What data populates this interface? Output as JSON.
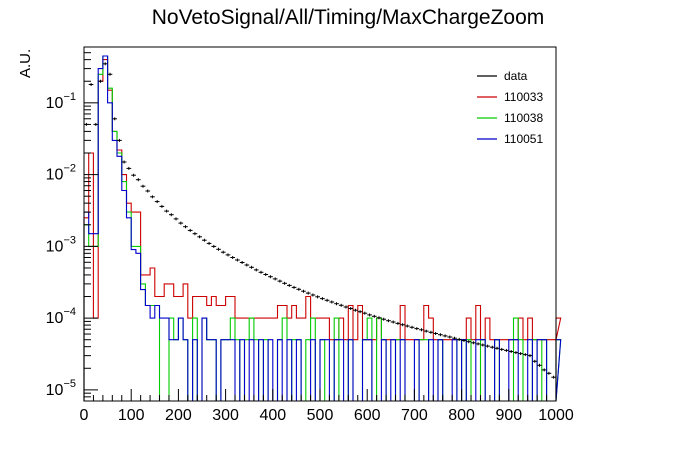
{
  "chart_data": {
    "type": "line",
    "title": "NoVetoSignal/All/Timing/MaxChargeZoom",
    "xlabel": "",
    "ylabel": "A.U.",
    "xlim": [
      0,
      1000
    ],
    "ylim": [
      7e-06,
      0.6
    ],
    "log_y": true,
    "grid": false,
    "legend_position": "top-right",
    "x_ticks": [
      "0",
      "100",
      "200",
      "300",
      "400",
      "500",
      "600",
      "700",
      "800",
      "900",
      "1000"
    ],
    "bin_width": 10,
    "series": [
      {
        "name": "data",
        "color": "#000000",
        "style": "error-bar markers",
        "values": [
          0.05,
          0.18,
          0.05,
          0.2,
          0.35,
          0.25,
          0.06,
          0.03,
          0.015,
          0.0122,
          0.0098,
          0.0085,
          0.0069,
          0.0059,
          0.0049,
          0.0042,
          0.0036,
          0.0031,
          0.00276,
          0.00241,
          0.00211,
          0.00188,
          0.00167,
          0.0015,
          0.00136,
          0.00122,
          0.0011,
          0.001,
          0.00091,
          0.00083,
          0.00076,
          0.0007,
          0.000645,
          0.000595,
          0.00055,
          0.00051,
          0.00047,
          0.000435,
          0.000405,
          0.000378,
          0.000352,
          0.000328,
          0.000306,
          0.000286,
          0.000268,
          0.000252,
          0.000237,
          0.000223,
          0.00021,
          0.000198,
          0.000187,
          0.000177,
          0.000168,
          0.000159,
          0.000151,
          0.000143,
          0.000136,
          0.000129,
          0.000123,
          0.000117,
          0.000111,
          0.000106,
          0.000101,
          9.65e-05,
          9.22e-05,
          8.82e-05,
          8.45e-05,
          8.1e-05,
          7.77e-05,
          7.45e-05,
          7.15e-05,
          6.87e-05,
          6.6e-05,
          6.35e-05,
          6.11e-05,
          5.88e-05,
          5.66e-05,
          5.45e-05,
          5.25e-05,
          5.06e-05,
          4.88e-05,
          4.7e-05,
          4.53e-05,
          4.37e-05,
          4.22e-05,
          4.07e-05,
          3.93e-05,
          3.8e-05,
          3.67e-05,
          3.55e-05,
          3.43e-05,
          3.31e-05,
          3.2e-05,
          3.1e-05,
          3e-05,
          2.5e-05,
          2.2e-05,
          1.9e-05,
          1.7e-05,
          1.5e-05
        ]
      },
      {
        "name": "110033",
        "color": "#cc0000",
        "style": "step",
        "values": [
          0.0025,
          0.02,
          0.0001,
          0.2,
          0.4,
          0.15,
          0.04,
          0.022,
          0.01,
          0.004,
          0.003,
          0.003,
          0.0004,
          0.0004,
          0.0005,
          0.0002,
          0.0002,
          0.0003,
          0.0003,
          0.0002,
          0.0002,
          0.0003,
          0.0001,
          0.0002,
          0.0002,
          0.0002,
          0.00015,
          0.0002,
          0.00015,
          0.00015,
          0.0002,
          0.0002,
          0.0001,
          0.0001,
          0.0001,
          0.0001,
          0.0001,
          0.0001,
          0.0001,
          0.0001,
          0.0001,
          0.00015,
          0.00015,
          0.0001,
          0.00015,
          0.0001,
          0.0001,
          0.0002,
          0.0001,
          0.0001,
          0.0001,
          0.0001,
          5e-05,
          5e-05,
          0.0001,
          5e-05,
          0.00015,
          5e-05,
          0.00015,
          5e-05,
          5e-05,
          5e-05,
          0.0001,
          5e-05,
          5e-05,
          5e-05,
          5e-05,
          0.00015,
          5e-05,
          5e-05,
          5e-05,
          5e-05,
          0.00015,
          0.0001,
          5e-05,
          5e-05,
          5e-05,
          5e-05,
          5e-05,
          5e-05,
          5e-05,
          0.0001,
          5e-05,
          0.00015,
          5e-05,
          0.0001,
          5e-05,
          5e-05,
          5e-05,
          5e-05,
          5e-05,
          5e-05,
          0.0001,
          5e-05,
          0.0001,
          5e-05,
          5e-05,
          5e-05,
          5e-05,
          5e-05,
          5e-05,
          0.0001
        ]
      },
      {
        "name": "110038",
        "color": "#00cc00",
        "style": "step",
        "values": [
          0.002,
          0.001,
          0.001,
          0.25,
          0.45,
          0.16,
          0.04,
          0.02,
          0.008,
          0.003,
          0.001,
          0.001,
          0.0003,
          0.00015,
          0.00015,
          0.00015,
          0.0,
          0.0,
          0.0001,
          5e-05,
          0.0001,
          5e-05,
          0.0,
          0.0001,
          0.0,
          0.0001,
          5e-05,
          5e-05,
          0.0,
          5e-05,
          5e-05,
          0.0001,
          5e-05,
          0.0,
          5e-05,
          0.0001,
          5e-05,
          0.0,
          5e-05,
          0.0,
          0.0,
          5e-05,
          0.0001,
          0.0,
          5e-05,
          5e-05,
          0.0,
          5e-05,
          0.0001,
          0.0,
          5e-05,
          0.0,
          0.0,
          0.0001,
          0.0,
          0.0,
          5e-05,
          0.0,
          0.0,
          5e-05,
          0.0001,
          0.0,
          0.0001,
          5e-05,
          0.0,
          0.0,
          5e-05,
          5e-05,
          0.0,
          0.0,
          0.0,
          5e-05,
          5e-05,
          0.0,
          0.0,
          5e-05,
          0.0,
          0.0,
          0.0,
          5e-05,
          0.0,
          5e-05,
          0.0,
          0.0,
          5e-05,
          0.0,
          0.0,
          5e-05,
          0.0,
          0.0,
          0.0,
          0.0001,
          5e-05,
          0.0,
          0.0,
          5e-05,
          0.0,
          5e-05,
          0.0,
          0.0,
          0.0,
          5e-05
        ]
      },
      {
        "name": "110051",
        "color": "#0000cc",
        "style": "step",
        "values": [
          0.003,
          0.0015,
          0.0015,
          0.3,
          0.45,
          0.1,
          0.03,
          0.018,
          0.006,
          0.0025,
          0.0009,
          0.0008,
          0.00025,
          0.00015,
          0.0001,
          0.00015,
          0.0001,
          0.0001,
          5e-05,
          5e-05,
          0.0001,
          5e-05,
          0.0,
          5e-05,
          0.0,
          0.0001,
          5e-05,
          5e-05,
          0.0,
          5e-05,
          5e-05,
          5e-05,
          0.0,
          5e-05,
          0.0,
          5e-05,
          0.0,
          5e-05,
          0.0,
          5e-05,
          0.0,
          5e-05,
          0.0,
          5e-05,
          0.0,
          5e-05,
          0.0,
          0.0,
          5e-05,
          0.0,
          5e-05,
          5e-05,
          0.0,
          5e-05,
          5e-05,
          0.0,
          5e-05,
          0.0,
          0.0,
          5e-05,
          5e-05,
          0.0,
          0.0,
          5e-05,
          0.0,
          5e-05,
          0.0,
          5e-05,
          0.0,
          0.0,
          5e-05,
          0.0,
          0.0,
          5e-05,
          0.0,
          5e-05,
          0.0,
          0.0,
          5e-05,
          0.0,
          5e-05,
          0.0,
          0.0,
          5e-05,
          5e-05,
          0.0,
          0.0,
          5e-05,
          0.0,
          0.0,
          5e-05,
          5e-05,
          0.0,
          0.0,
          5e-05,
          0.0,
          5e-05,
          5e-05,
          0.0,
          0.0,
          0.0,
          5e-05
        ]
      }
    ]
  }
}
